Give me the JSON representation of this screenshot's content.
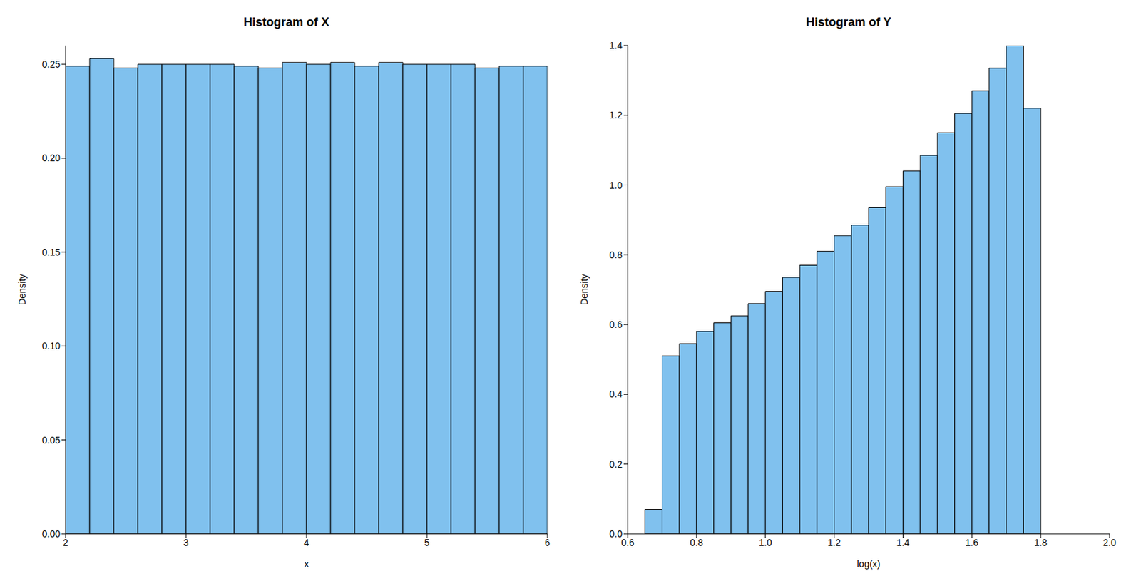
{
  "chart_data": [
    {
      "type": "histogram",
      "title": "Histogram of X",
      "x_label": "x",
      "y_label": "Density",
      "color": "#80c1ee",
      "bins": [
        2,
        2.2,
        2.4,
        2.6,
        2.8,
        3,
        3.2,
        3.4,
        3.6,
        3.8,
        4,
        4.2,
        4.4,
        4.6,
        4.8,
        5,
        5.2,
        5.4,
        5.6,
        5.8,
        6
      ],
      "values": [
        0.249,
        0.253,
        0.248,
        0.25,
        0.25,
        0.25,
        0.25,
        0.249,
        0.248,
        0.251,
        0.25,
        0.251,
        0.249,
        0.251,
        0.25,
        0.25,
        0.25,
        0.248,
        0.249,
        0.249
      ],
      "xlim": [
        2,
        6
      ],
      "xticks": [
        2,
        3,
        4,
        5,
        6
      ],
      "ylim": [
        0,
        0.26
      ],
      "yticks": [
        {
          "value": 0,
          "label": "0.00"
        },
        0.05,
        {
          "value": 0.1,
          "label": "0.10"
        },
        0.15,
        {
          "value": 0.2,
          "label": "0.20"
        },
        0.25
      ]
    },
    {
      "type": "histogram",
      "title": "Histogram of Y",
      "x_label": "log(x)",
      "y_label": "Density",
      "color": "#80c1ee",
      "bins": [
        0.65,
        0.7,
        0.75,
        0.8,
        0.85,
        0.9,
        0.95,
        1,
        1.05,
        1.1,
        1.15,
        1.2,
        1.25,
        1.3,
        1.35,
        1.4,
        1.45,
        1.5,
        1.55,
        1.6,
        1.65,
        1.7,
        1.75,
        1.8
      ],
      "values": [
        0.07,
        0.51,
        0.545,
        0.58,
        0.605,
        0.625,
        0.66,
        0.695,
        0.735,
        0.77,
        0.81,
        0.855,
        0.885,
        0.935,
        0.995,
        1.04,
        1.085,
        1.15,
        1.205,
        1.27,
        1.335,
        1.4,
        1.22
      ],
      "xlim": [
        0.6,
        2
      ],
      "xticks": [
        0.6,
        0.8,
        {
          "value": 1,
          "label": "1.0"
        },
        1.2,
        1.4,
        1.6,
        1.8,
        {
          "value": 2,
          "label": "2.0"
        }
      ],
      "ylim": [
        0,
        1.4
      ],
      "yticks": [
        {
          "value": 0,
          "label": "0.0"
        },
        0.2,
        0.4,
        0.6,
        0.8,
        {
          "value": 1,
          "label": "1.0"
        },
        1.2,
        1.4
      ]
    }
  ]
}
